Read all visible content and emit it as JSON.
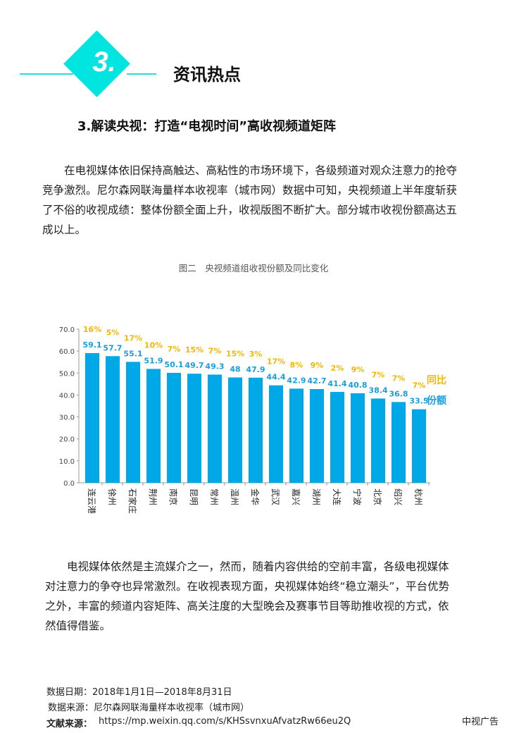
{
  "header": {
    "number": "3.",
    "section_title": "资讯热点",
    "colors": {
      "accent": "#00e5e0"
    }
  },
  "subtitle": "3.解读央视：打造“电视时间”高收视频道矩阵",
  "paragraph1": "　　在电视媒体依旧保持高触达、高粘性的市场环境下，各级频道对观众注意力的抢夺竞争激烈。尼尔森网联海量样本收视率（城市网）数据中可知，央视频道上半年度斩获了不俗的收视成绩：整体份额全面上升，收视版图不断扩大。部分城市收视份额高达五成以上。",
  "paragraph2": "　　电视媒体依然是主流媒介之一，然而，随着内容供给的空前丰富，各级电视媒体对注意力的争夺也异常激烈。在收视表现方面，央视媒体始终“稳立潮头”，平台优势之外，丰富的频道内容矩阵、高关注度的大型晚会及赛事节目等助推收视的方式，依然值得借鉴。",
  "chart_data": {
    "type": "bar",
    "title": "图二　央视频道组收视份额及同比变化",
    "categories": [
      "连云港",
      "徐州",
      "石家庄",
      "荆州",
      "南京",
      "昆明",
      "常州",
      "温州",
      "金华",
      "武汉",
      "嘉兴",
      "湖州",
      "大连",
      "宁波",
      "北京",
      "绍兴",
      "杭州"
    ],
    "series": [
      {
        "name": "份额",
        "values": [
          59.1,
          57.7,
          55.1,
          51.9,
          50.1,
          49.7,
          49.3,
          48.0,
          47.9,
          44.4,
          42.9,
          42.7,
          41.4,
          40.8,
          38.4,
          36.8,
          33.5
        ],
        "color": "#00a8e8"
      },
      {
        "name": "同比",
        "values": [
          "16%",
          "5%",
          "17%",
          "10%",
          "7%",
          "15%",
          "7%",
          "15%",
          "3%",
          "17%",
          "8%",
          "9%",
          "2%",
          "9%",
          "7%",
          "7%",
          "7%"
        ],
        "color": "#f5b800"
      }
    ],
    "yticks": [
      "0.0",
      "10.0",
      "20.0",
      "30.0",
      "40.0",
      "50.0",
      "60.0",
      "70.0"
    ],
    "ylim": [
      0,
      70
    ],
    "legend": [
      "同比",
      "份额"
    ],
    "legend_position": "right"
  },
  "footer": {
    "date": "数据日期：2018年1月1日—2018年8月31日",
    "source": "数据来源：尼尔森网联海量样本收视率（城市网）",
    "ref_label": "文献来源：",
    "ref_url": "https://mp.weixin.qq.com/s/KHSsvnxuAfvatzRw66eu2Q",
    "brand": "中视广告"
  }
}
